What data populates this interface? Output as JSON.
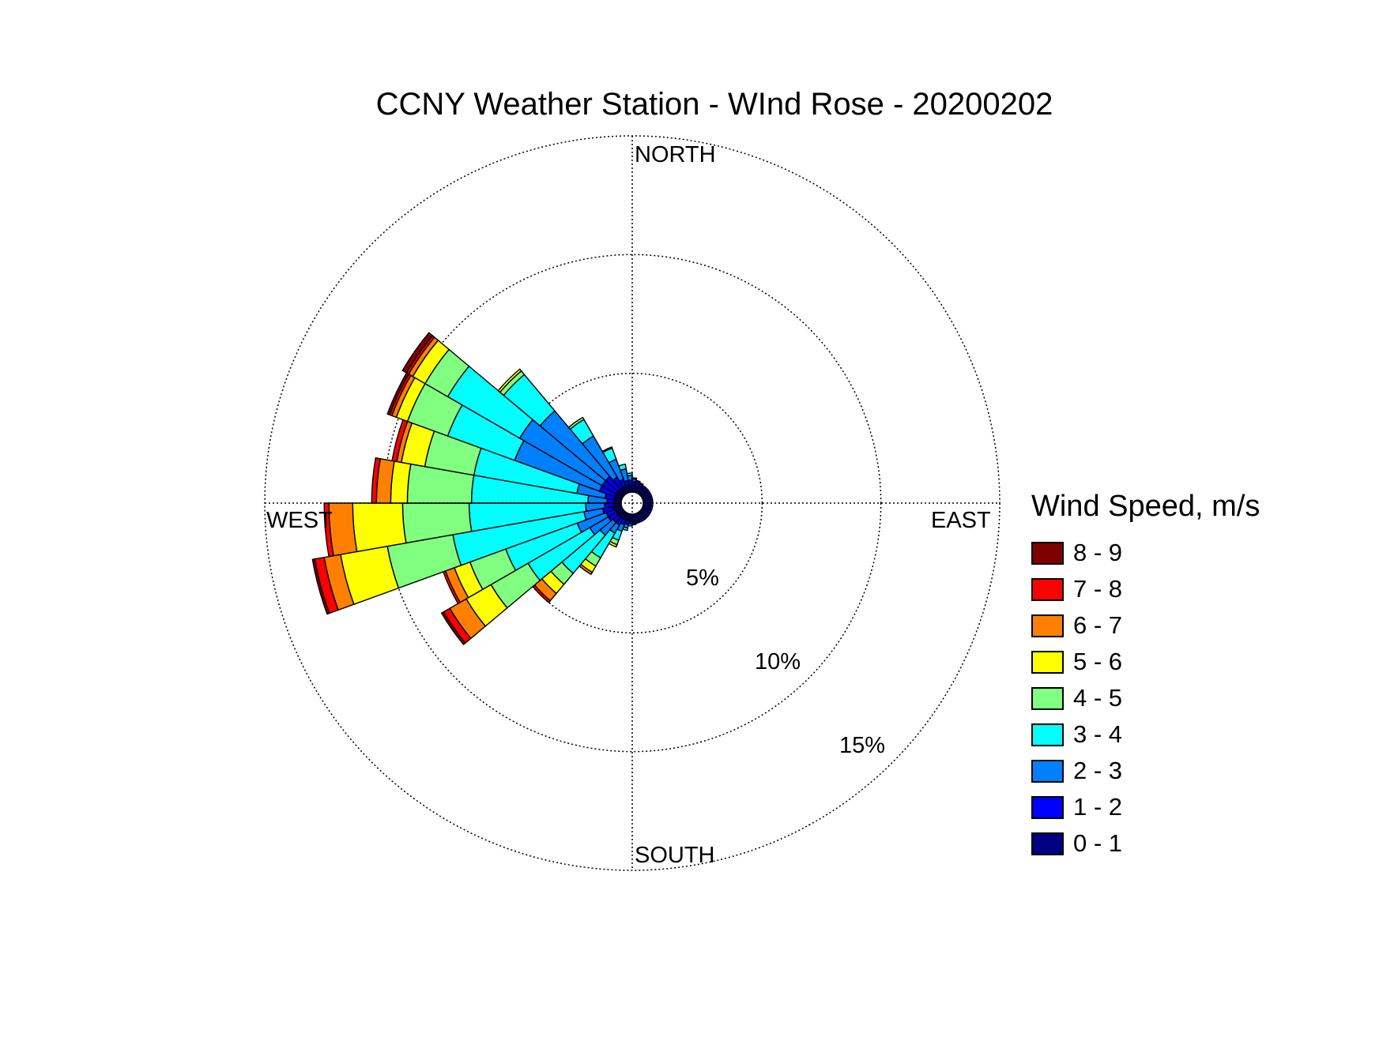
{
  "chart_data": {
    "type": "polar-bar",
    "title": "CCNY Weather Station - WInd Rose - 20200202",
    "directions": [
      "NORTH",
      "EAST",
      "SOUTH",
      "WEST"
    ],
    "radial_ticks": [
      "5%",
      "10%",
      "15%"
    ],
    "radial_max": 15,
    "legend_title": "Wind Speed, m/s",
    "bins": [
      {
        "label": "0 - 1",
        "color": "#000080"
      },
      {
        "label": "1 - 2",
        "color": "#0000ff"
      },
      {
        "label": "2 - 3",
        "color": "#0080ff"
      },
      {
        "label": "3 - 4",
        "color": "#00ffff"
      },
      {
        "label": "4 - 5",
        "color": "#80ff80"
      },
      {
        "label": "5 - 6",
        "color": "#ffff00"
      },
      {
        "label": "6 - 7",
        "color": "#ff8000"
      },
      {
        "label": "7 - 8",
        "color": "#ff0000"
      },
      {
        "label": "8 - 9",
        "color": "#800000"
      }
    ],
    "sectors": [
      {
        "dir": 255,
        "cum": [
          0.4,
          0.8,
          1.6,
          7.2,
          10.0,
          12.0,
          12.7,
          13.1,
          13.2
        ]
      },
      {
        "dir": 265,
        "cum": [
          0.3,
          0.7,
          1.5,
          6.4,
          9.2,
          11.3,
          12.3,
          12.5,
          12.5
        ]
      },
      {
        "dir": 275,
        "cum": [
          0.3,
          0.6,
          1.4,
          6.3,
          9.0,
          9.7,
          10.3,
          10.5,
          10.5
        ]
      },
      {
        "dir": 285,
        "cum": [
          0.3,
          0.7,
          1.9,
          6.3,
          8.4,
          9.4,
          9.6,
          9.8,
          9.8
        ]
      },
      {
        "dir": 295,
        "cum": [
          0.3,
          1.0,
          4.8,
          7.8,
          9.6,
          10.1,
          10.3,
          10.4,
          10.5
        ]
      },
      {
        "dir": 305,
        "cum": [
          0.3,
          1.0,
          5.0,
          8.5,
          9.6,
          10.2,
          10.4,
          10.5,
          10.7
        ]
      },
      {
        "dir": 315,
        "cum": [
          0.3,
          1.0,
          4.6,
          6.6,
          6.8,
          6.9,
          6.9,
          6.9,
          6.9
        ]
      },
      {
        "dir": 325,
        "cum": [
          0.3,
          0.8,
          2.8,
          3.6,
          3.7,
          3.7,
          3.7,
          3.7,
          3.7
        ]
      },
      {
        "dir": 335,
        "cum": [
          0.3,
          0.6,
          1.5,
          2.0,
          2.05,
          2.05,
          2.05,
          2.05,
          2.05
        ]
      },
      {
        "dir": 345,
        "cum": [
          0.3,
          0.5,
          1.0,
          1.2,
          1.2,
          1.2,
          1.2,
          1.2,
          1.2
        ]
      },
      {
        "dir": 355,
        "cum": [
          0.3,
          0.5,
          0.7,
          0.8,
          0.8,
          0.8,
          0.8,
          0.8,
          0.8
        ]
      },
      {
        "dir": 5,
        "cum": [
          0.3,
          0.45,
          0.55,
          0.6,
          0.6,
          0.6,
          0.6,
          0.6,
          0.6
        ]
      },
      {
        "dir": 15,
        "cum": [
          0.3,
          0.45,
          0.5,
          0.5,
          0.5,
          0.5,
          0.5,
          0.5,
          0.5
        ]
      },
      {
        "dir": 25,
        "cum": [
          0.3,
          0.4,
          0.45,
          0.45,
          0.45,
          0.45,
          0.45,
          0.45,
          0.45
        ]
      },
      {
        "dir": 35,
        "cum": [
          0.3,
          0.4,
          0.4,
          0.4,
          0.4,
          0.4,
          0.4,
          0.4,
          0.4
        ]
      },
      {
        "dir": 45,
        "cum": [
          0.3,
          0.4,
          0.4,
          0.4,
          0.4,
          0.4,
          0.4,
          0.4,
          0.4
        ]
      },
      {
        "dir": 55,
        "cum": [
          0.3,
          0.4,
          0.4,
          0.4,
          0.4,
          0.4,
          0.4,
          0.4,
          0.4
        ]
      },
      {
        "dir": 65,
        "cum": [
          0.3,
          0.4,
          0.4,
          0.4,
          0.4,
          0.4,
          0.4,
          0.4,
          0.4
        ]
      },
      {
        "dir": 75,
        "cum": [
          0.3,
          0.4,
          0.4,
          0.4,
          0.4,
          0.4,
          0.4,
          0.4,
          0.4
        ]
      },
      {
        "dir": 85,
        "cum": [
          0.3,
          0.4,
          0.4,
          0.4,
          0.4,
          0.4,
          0.4,
          0.4,
          0.4
        ]
      },
      {
        "dir": 95,
        "cum": [
          0.3,
          0.4,
          0.4,
          0.4,
          0.4,
          0.4,
          0.4,
          0.4,
          0.4
        ]
      },
      {
        "dir": 105,
        "cum": [
          0.3,
          0.4,
          0.4,
          0.4,
          0.4,
          0.4,
          0.4,
          0.4,
          0.4
        ]
      },
      {
        "dir": 115,
        "cum": [
          0.3,
          0.4,
          0.4,
          0.4,
          0.4,
          0.4,
          0.4,
          0.4,
          0.4
        ]
      },
      {
        "dir": 125,
        "cum": [
          0.3,
          0.4,
          0.4,
          0.4,
          0.4,
          0.4,
          0.4,
          0.4,
          0.4
        ]
      },
      {
        "dir": 135,
        "cum": [
          0.3,
          0.4,
          0.4,
          0.4,
          0.4,
          0.4,
          0.4,
          0.4,
          0.4
        ]
      },
      {
        "dir": 145,
        "cum": [
          0.3,
          0.4,
          0.4,
          0.4,
          0.4,
          0.4,
          0.4,
          0.4,
          0.4
        ]
      },
      {
        "dir": 155,
        "cum": [
          0.3,
          0.4,
          0.4,
          0.4,
          0.4,
          0.4,
          0.4,
          0.4,
          0.4
        ]
      },
      {
        "dir": 165,
        "cum": [
          0.3,
          0.4,
          0.4,
          0.4,
          0.4,
          0.4,
          0.4,
          0.4,
          0.4
        ]
      },
      {
        "dir": 175,
        "cum": [
          0.3,
          0.4,
          0.45,
          0.45,
          0.45,
          0.45,
          0.45,
          0.45,
          0.45
        ]
      },
      {
        "dir": 185,
        "cum": [
          0.3,
          0.4,
          0.5,
          0.5,
          0.5,
          0.5,
          0.5,
          0.5,
          0.5
        ]
      },
      {
        "dir": 195,
        "cum": [
          0.3,
          0.45,
          0.6,
          0.7,
          0.7,
          0.7,
          0.7,
          0.7,
          0.7
        ]
      },
      {
        "dir": 205,
        "cum": [
          0.3,
          0.5,
          0.8,
          1.2,
          1.4,
          1.5,
          1.5,
          1.5,
          1.5
        ]
      },
      {
        "dir": 215,
        "cum": [
          0.3,
          0.6,
          1.0,
          2.2,
          2.6,
          2.9,
          3.0,
          3.0,
          3.0
        ]
      },
      {
        "dir": 225,
        "cum": [
          0.3,
          0.6,
          1.3,
          3.4,
          4.0,
          4.5,
          4.9,
          5.0,
          5.0
        ]
      },
      {
        "dir": 235,
        "cum": [
          0.3,
          0.7,
          1.6,
          4.6,
          6.4,
          7.6,
          8.4,
          8.7,
          8.8
        ]
      },
      {
        "dir": 245,
        "cum": [
          0.3,
          0.7,
          2.0,
          5.2,
          6.8,
          7.5,
          7.9,
          8.0,
          8.0
        ]
      }
    ]
  }
}
